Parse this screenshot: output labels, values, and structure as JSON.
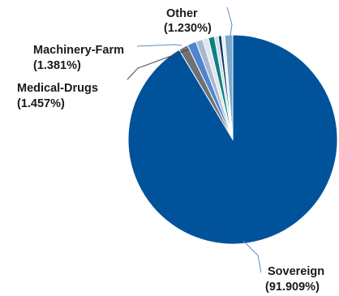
{
  "chart_data": {
    "type": "pie",
    "title": "",
    "start_angle_deg": 0,
    "direction": "clockwise",
    "slices": [
      {
        "label": "Sovereign",
        "value": 91.909,
        "value_text": "(91.909%)",
        "color": "#00529b",
        "labeled": true
      },
      {
        "label": "Medical-Drugs",
        "value": 1.457,
        "value_text": "(1.457%)",
        "color": "#6e7276",
        "labeled": true
      },
      {
        "label": "Machinery-Farm",
        "value": 1.381,
        "value_text": "(1.381%)",
        "color": "#4f84cf",
        "labeled": true
      },
      {
        "label": "",
        "value": 1.1,
        "value_text": "",
        "color": "#a9b8cc",
        "labeled": false
      },
      {
        "label": "",
        "value": 0.9,
        "value_text": "",
        "color": "#e2e6eb",
        "labeled": false
      },
      {
        "label": "",
        "value": 0.95,
        "value_text": "",
        "color": "#0f7f86",
        "labeled": false
      },
      {
        "label": "",
        "value": 0.6,
        "value_text": "",
        "color": "#c7e3e4",
        "labeled": false
      },
      {
        "label": "",
        "value": 0.5,
        "value_text": "",
        "color": "#143566",
        "labeled": false
      },
      {
        "label": "",
        "value": 0.5,
        "value_text": "",
        "color": "#e8eef4",
        "labeled": false
      },
      {
        "label": "Other",
        "value": 1.23,
        "value_text": "(1.230%)",
        "color": "#7ba9c9",
        "labeled": true
      }
    ],
    "leader_line_color": "#5b8ec0",
    "leader_line_color_dark": "#444444"
  }
}
